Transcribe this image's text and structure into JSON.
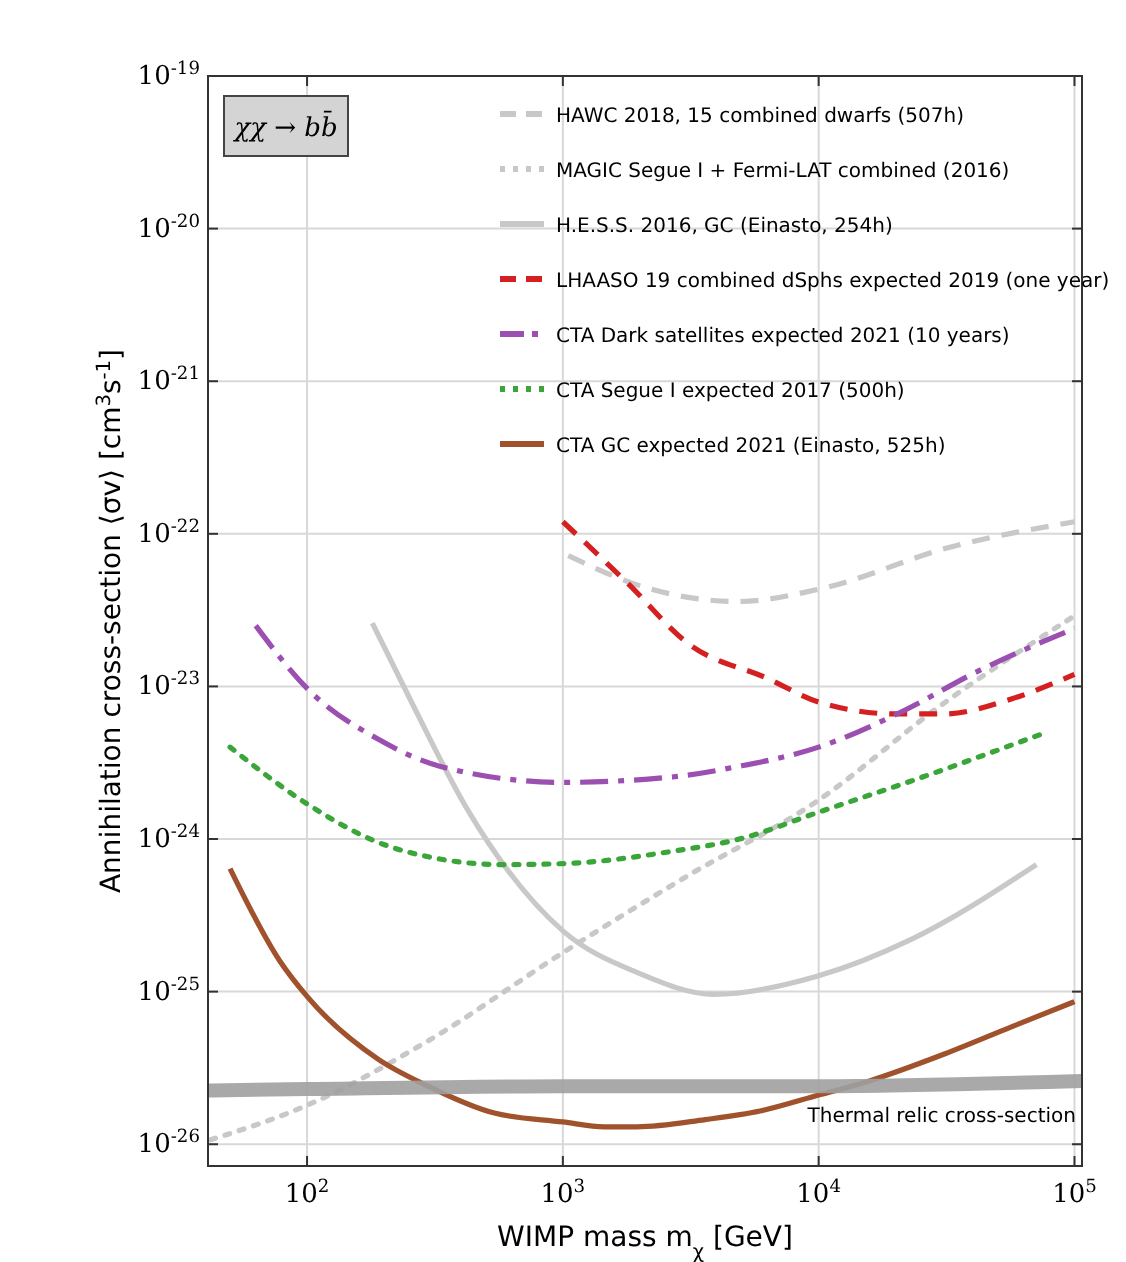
{
  "chart_data": {
    "type": "line",
    "xlabel": "WIMP mass m$_{χ}$ [GeV]",
    "ylabel": "Annihilation cross-section ⟨σv⟩ [cm$^{3}$s$^{-1}$]",
    "log": "xy",
    "grid": true,
    "legend": "top right",
    "xlim": [
      41,
      107000
    ],
    "ylim": [
      7.2e-27,
      1e-19
    ],
    "xticks": [
      {
        "value": 100,
        "label": "10$^{2}$"
      },
      {
        "value": 1000,
        "label": "10$^{3}$"
      },
      {
        "value": 10000,
        "label": "10$^{4}$"
      },
      {
        "value": 100000,
        "label": "10$^{5}$"
      }
    ],
    "yticks": [
      {
        "value": 1e-26,
        "label": "10$^{-26}$"
      },
      {
        "value": 1e-25,
        "label": "10$^{-25}$"
      },
      {
        "value": 1e-24,
        "label": "10$^{-24}$"
      },
      {
        "value": 1e-23,
        "label": "10$^{-23}$"
      },
      {
        "value": 1e-22,
        "label": "10$^{-22}$"
      },
      {
        "value": 1e-21,
        "label": "10$^{-21}$"
      },
      {
        "value": 1e-20,
        "label": "10$^{-20}$"
      },
      {
        "value": 1e-19,
        "label": "10$^{-19}$"
      }
    ],
    "annotations": [
      "χχ → bb̄",
      "Thermal relic cross-section"
    ],
    "series": [
      {
        "name": "HAWC 2018, 15 combined dwarfs (507h)",
        "color": "#c8c8c8",
        "line_style": "dashed",
        "x": [
          1050,
          2150,
          4800,
          10400,
          32000,
          100000
        ],
        "values": [
          7.2e-23,
          4.4e-23,
          3.6e-23,
          4.4e-23,
          8.1e-23,
          1.2e-22
        ]
      },
      {
        "name": "MAGIC Segue I + Fermi-LAT combined (2016)",
        "color": "#c8c8c8",
        "line_style": "dotted",
        "x": [
          42,
          100,
          300,
          1000,
          3000,
          10000,
          30000,
          100000
        ],
        "values": [
          1.07e-26,
          1.8e-26,
          4.8e-26,
          1.8e-25,
          5.6e-25,
          1.8e-24,
          7.5e-24,
          2.9e-23
        ]
      },
      {
        "name": "H.E.S.S. 2016, GC (Einasto, 254h)",
        "color": "#c8c8c8",
        "line_style": "solid",
        "x": [
          180,
          260,
          420,
          1000,
          1960,
          3900,
          10000,
          23000,
          71000
        ],
        "values": [
          2.6e-23,
          7.5e-24,
          1.6e-24,
          2.5e-25,
          1.33e-25,
          9.6e-26,
          1.27e-25,
          2.2e-25,
          6.8e-25
        ]
      },
      {
        "name": "LHAASO 19 combined dSphs expected 2019 (one year)",
        "color": "#d42020",
        "line_style": "dashed",
        "x": [
          1000,
          1780,
          3100,
          6300,
          10000,
          20000,
          31000,
          57000,
          100000
        ],
        "values": [
          1.2e-22,
          4.8e-23,
          1.9e-23,
          1.13e-23,
          7.9e-24,
          6.6e-24,
          6.6e-24,
          8.3e-24,
          1.2e-23
        ]
      },
      {
        "name": "CTA Dark satellites expected 2021 (10 years)",
        "color": "#9b4fb0",
        "line_style": "dashdot",
        "x": [
          63,
          100,
          190,
          330,
          1000,
          2670,
          4900,
          10000,
          21000,
          42000,
          100000
        ],
        "values": [
          2.5e-23,
          9.7e-24,
          4.5e-24,
          3e-24,
          2.35e-24,
          2.55e-24,
          3e-24,
          4e-24,
          6.8e-24,
          1.26e-23,
          2.4e-23
        ]
      },
      {
        "name": "CTA Segue I expected 2017 (500h)",
        "color": "#3aa63a",
        "line_style": "dotted",
        "x": [
          50,
          100,
          190,
          330,
          575,
          1000,
          2670,
          4900,
          10000,
          23000,
          75000
        ],
        "values": [
          4e-24,
          1.7e-24,
          9.5e-25,
          7.4e-25,
          6.8e-25,
          6.9e-25,
          8.3e-25,
          1e-24,
          1.5e-24,
          2.4e-24,
          4.9e-24
        ]
      },
      {
        "name": "CTA GC expected 2021 (Einasto, 525h)",
        "color": "#a0522d",
        "line_style": "solid",
        "x": [
          50,
          78,
          100,
          190,
          290,
          540,
          1000,
          1450,
          1950,
          3600,
          5900,
          10000,
          15800,
          31000,
          57000,
          100000
        ],
        "values": [
          6.4e-25,
          1.6e-25,
          9.3e-26,
          3.6e-26,
          2.45e-26,
          1.6e-26,
          1.4e-26,
          1.3e-26,
          1.3e-26,
          1.45e-26,
          1.65e-26,
          2.1e-26,
          2.6e-26,
          3.9e-26,
          5.9e-26,
          8.6e-26
        ]
      },
      {
        "color": "#a0a0a0",
        "line_style": "solid",
        "x": [
          41,
          100,
          1000,
          10000,
          107000
        ],
        "values": [
          2.25e-26,
          2.3e-26,
          2.4e-26,
          2.4e-26,
          2.6e-26
        ]
      }
    ]
  }
}
